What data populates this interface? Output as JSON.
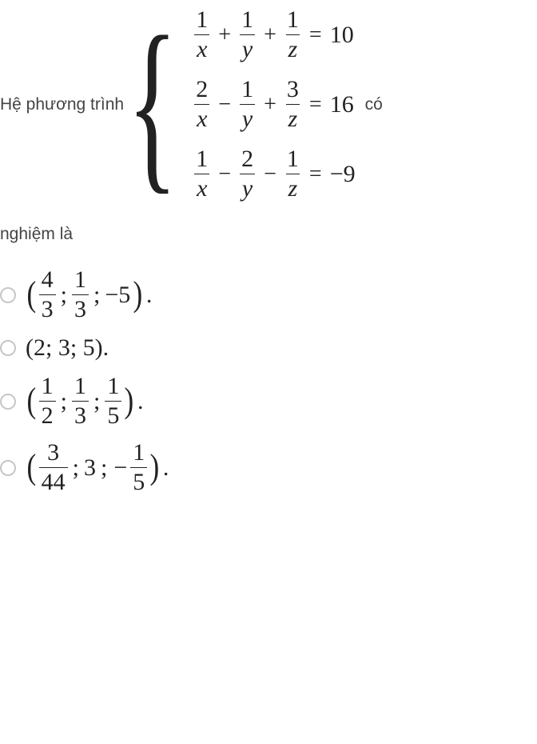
{
  "question": {
    "prefix_text": "Hệ phương trình",
    "suffix_text": "có",
    "tail_text": "nghiệm là",
    "equations": [
      {
        "terms": [
          {
            "num": "1",
            "den": "x",
            "op_after": "+"
          },
          {
            "num": "1",
            "den": "y",
            "op_after": "+"
          },
          {
            "num": "1",
            "den": "z",
            "op_after": "="
          }
        ],
        "rhs": "10"
      },
      {
        "terms": [
          {
            "num": "2",
            "den": "x",
            "op_after": "−"
          },
          {
            "num": "1",
            "den": "y",
            "op_after": "+"
          },
          {
            "num": "3",
            "den": "z",
            "op_after": "="
          }
        ],
        "rhs": "16"
      },
      {
        "terms": [
          {
            "num": "1",
            "den": "x",
            "op_after": "−"
          },
          {
            "num": "2",
            "den": "y",
            "op_after": "−"
          },
          {
            "num": "1",
            "den": "z",
            "op_after": "="
          }
        ],
        "rhs": "−9"
      }
    ]
  },
  "answers": [
    {
      "display": "frac3",
      "items": [
        {
          "type": "frac",
          "num": "4",
          "den": "3"
        },
        {
          "type": "frac",
          "num": "1",
          "den": "3"
        },
        {
          "type": "plain",
          "text": "−5"
        }
      ]
    },
    {
      "display": "plain",
      "text": "(2; 3; 5)."
    },
    {
      "display": "frac3",
      "items": [
        {
          "type": "frac",
          "num": "1",
          "den": "2"
        },
        {
          "type": "frac",
          "num": "1",
          "den": "3"
        },
        {
          "type": "frac",
          "num": "1",
          "den": "5"
        }
      ]
    },
    {
      "display": "frac3",
      "items": [
        {
          "type": "frac",
          "num": "3",
          "den": "44"
        },
        {
          "type": "plain",
          "text": "3"
        },
        {
          "type": "negfrac",
          "num": "1",
          "den": "5"
        }
      ]
    }
  ],
  "colors": {
    "text": "#222222",
    "label": "#444444",
    "radio_border": "#c7c7c7",
    "background": "#ffffff"
  }
}
